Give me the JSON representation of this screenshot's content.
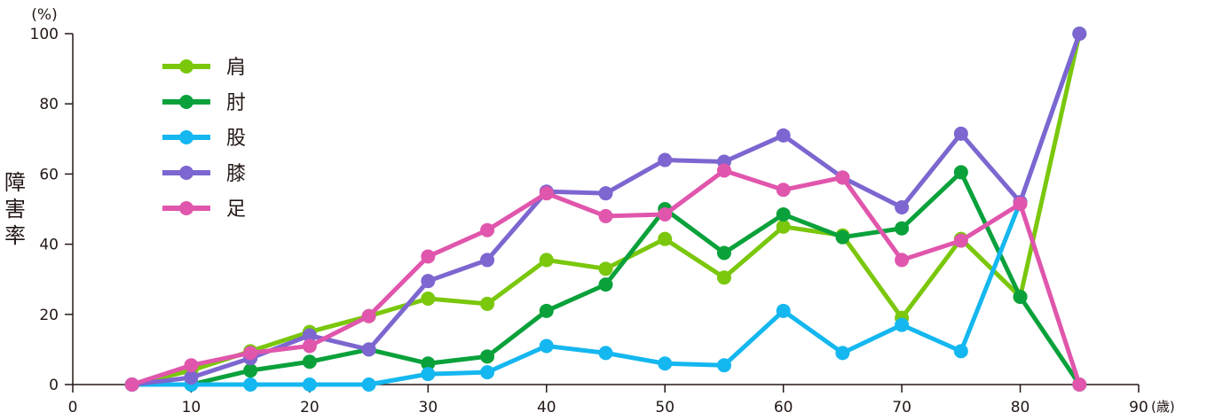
{
  "chart_data": {
    "type": "line",
    "ylabel": "障害率",
    "y_unit": "(%)",
    "x_unit": "(歳)",
    "xlim": [
      0,
      90
    ],
    "ylim": [
      0,
      100
    ],
    "x_ticks": [
      0,
      10,
      20,
      30,
      40,
      50,
      60,
      70,
      80,
      90
    ],
    "y_ticks": [
      0,
      20,
      40,
      60,
      80,
      100
    ],
    "grid": false,
    "legend_position": "top-left",
    "x": [
      5,
      10,
      15,
      20,
      25,
      30,
      35,
      40,
      45,
      50,
      55,
      60,
      65,
      70,
      75,
      80,
      85
    ],
    "series": [
      {
        "name": "肩",
        "color": "#7ac70c",
        "values": [
          0,
          4,
          9.5,
          15,
          19.5,
          24.5,
          23,
          35.5,
          33,
          41.5,
          30.5,
          45,
          42.5,
          19,
          41.5,
          25,
          100
        ]
      },
      {
        "name": "肘",
        "color": "#0aa13b",
        "values": [
          0,
          0,
          4,
          6.5,
          10,
          6,
          8,
          21,
          28.5,
          50,
          37.5,
          48.5,
          42,
          44.5,
          60.5,
          25,
          0
        ]
      },
      {
        "name": "股",
        "color": "#14b7ef",
        "values": [
          0,
          0,
          0,
          0,
          0,
          3,
          3.5,
          11,
          9,
          6,
          5.5,
          21,
          9,
          17,
          9.5,
          52,
          100
        ]
      },
      {
        "name": "膝",
        "color": "#7d66d0",
        "values": [
          0,
          2,
          7.5,
          14,
          10,
          29.5,
          35.5,
          55,
          54.5,
          64,
          63.5,
          71,
          59,
          50.5,
          71.5,
          52,
          100
        ]
      },
      {
        "name": "足",
        "color": "#e056ac",
        "values": [
          0,
          5.5,
          9,
          11,
          19.5,
          36.5,
          44,
          54.5,
          48,
          48.5,
          61,
          55.5,
          59,
          35.5,
          41,
          51.5,
          0
        ]
      }
    ]
  }
}
